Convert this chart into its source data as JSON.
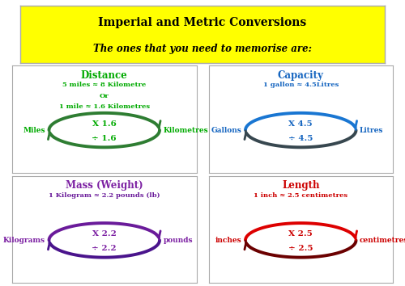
{
  "title1": "Imperial and Metric Conversions",
  "title2": "The ones that you need to memorise are:",
  "title_bg": "#FFFF00",
  "title_color": "#000000",
  "panels": [
    {
      "label": "Distance",
      "label_color": "#00AA00",
      "info": "5 miles ≈ 8 Kilometre\nOr\n1 mile ≈ 1.6 Kilometres",
      "info_color": "#00AA00",
      "top_arrow_label": "X 1.6",
      "bottom_arrow_label": "÷ 1.6",
      "left_label": "Miles",
      "right_label": "Kilometres",
      "arrow_color_top": "#2E7D32",
      "arrow_color_bottom": "#2E7D32",
      "text_color": "#00AA00"
    },
    {
      "label": "Capacity",
      "label_color": "#1565C0",
      "info": "1 gallon ≈ 4.5Litres",
      "info_color": "#1565C0",
      "top_arrow_label": "X 4.5",
      "bottom_arrow_label": "÷ 4.5",
      "left_label": "Gallons",
      "right_label": "Litres",
      "arrow_color_top": "#1976D2",
      "arrow_color_bottom": "#37474F",
      "text_color": "#1565C0"
    },
    {
      "label": "Mass (Weight)",
      "label_color": "#7B1FA2",
      "info": "1 Kilogram ≈ 2.2 pounds (lb)",
      "info_color": "#6A1B9A",
      "top_arrow_label": "X 2.2",
      "bottom_arrow_label": "÷ 2.2",
      "left_label": "Kilograms",
      "right_label": "pounds",
      "arrow_color_top": "#6A1B9A",
      "arrow_color_bottom": "#4A148C",
      "text_color": "#7B1FA2"
    },
    {
      "label": "Length",
      "label_color": "#CC0000",
      "info": "1 inch ≈ 2.5 centimetres",
      "info_color": "#CC0000",
      "top_arrow_label": "X 2.5",
      "bottom_arrow_label": "÷ 2.5",
      "left_label": "inches",
      "right_label": "centimetres",
      "arrow_color_top": "#DD0000",
      "arrow_color_bottom": "#6B0000",
      "text_color": "#CC0000"
    }
  ]
}
